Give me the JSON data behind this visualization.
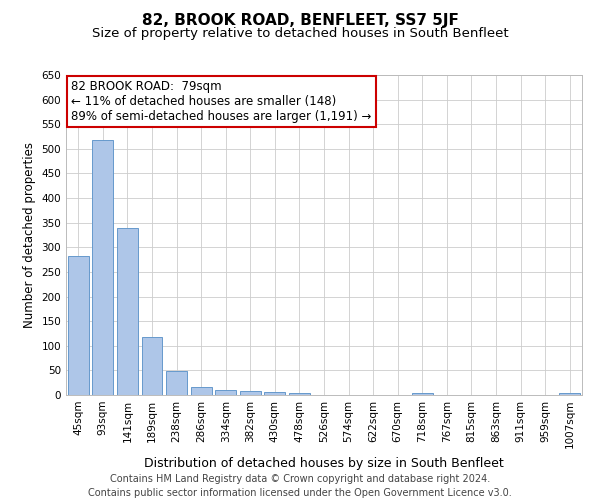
{
  "title": "82, BROOK ROAD, BENFLEET, SS7 5JF",
  "subtitle": "Size of property relative to detached houses in South Benfleet",
  "xlabel": "Distribution of detached houses by size in South Benfleet",
  "ylabel": "Number of detached properties",
  "categories": [
    "45sqm",
    "93sqm",
    "141sqm",
    "189sqm",
    "238sqm",
    "286sqm",
    "334sqm",
    "382sqm",
    "430sqm",
    "478sqm",
    "526sqm",
    "574sqm",
    "622sqm",
    "670sqm",
    "718sqm",
    "767sqm",
    "815sqm",
    "863sqm",
    "911sqm",
    "959sqm",
    "1007sqm"
  ],
  "values": [
    283,
    517,
    340,
    118,
    48,
    16,
    10,
    8,
    6,
    5,
    0,
    0,
    0,
    0,
    5,
    0,
    0,
    0,
    0,
    0,
    5
  ],
  "bar_color": "#aec6e8",
  "bar_edge_color": "#6699cc",
  "annotation_line1": "82 BROOK ROAD:  79sqm",
  "annotation_line2": "← 11% of detached houses are smaller (148)",
  "annotation_line3": "89% of semi-detached houses are larger (1,191) →",
  "annotation_box_color": "#ffffff",
  "annotation_box_edge_color": "#cc0000",
  "ylim": [
    0,
    650
  ],
  "yticks": [
    0,
    50,
    100,
    150,
    200,
    250,
    300,
    350,
    400,
    450,
    500,
    550,
    600,
    650
  ],
  "footer_line1": "Contains HM Land Registry data © Crown copyright and database right 2024.",
  "footer_line2": "Contains public sector information licensed under the Open Government Licence v3.0.",
  "background_color": "#ffffff",
  "grid_color": "#cccccc",
  "title_fontsize": 11,
  "subtitle_fontsize": 9.5,
  "xlabel_fontsize": 9,
  "ylabel_fontsize": 8.5,
  "tick_fontsize": 7.5,
  "annotation_fontsize": 8.5,
  "footer_fontsize": 7
}
